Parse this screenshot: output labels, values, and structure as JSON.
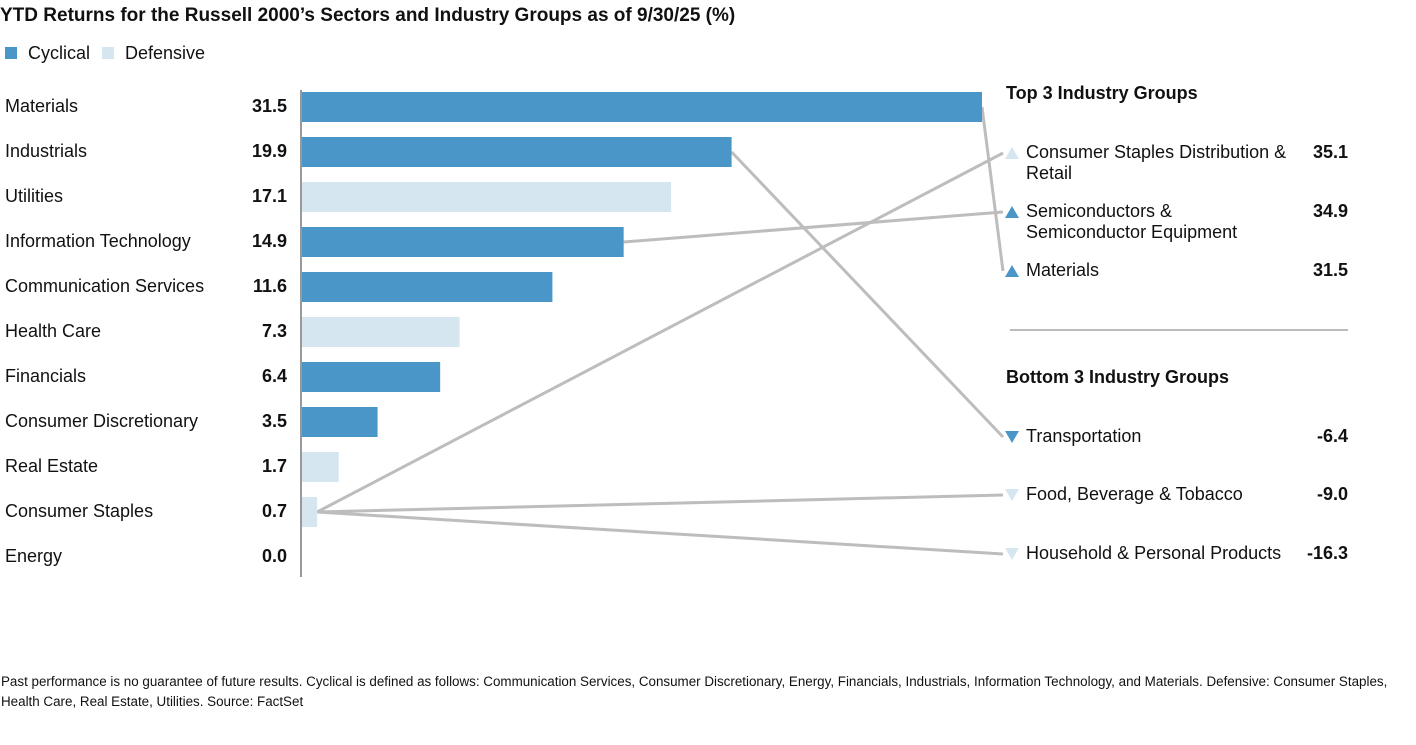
{
  "chart_data": {
    "type": "bar",
    "orientation": "horizontal",
    "title": "YTD Returns for the Russell 2000’s Sectors and Industry Groups as of 9/30/25 (%)",
    "categories": [
      "Materials",
      "Industrials",
      "Utilities",
      "Information Technology",
      "Communication Services",
      "Health Care",
      "Financials",
      "Consumer Discretionary",
      "Real Estate",
      "Consumer Staples",
      "Energy"
    ],
    "series": [
      {
        "name": "Cyclical",
        "color": "#4a96c9",
        "values": [
          31.5,
          19.9,
          null,
          14.9,
          11.6,
          null,
          6.4,
          3.5,
          null,
          null,
          0
        ],
        "value_labels": [
          "31.5",
          "19.9",
          null,
          "14.9",
          "11.6",
          null,
          "6.4",
          "3.5",
          null,
          null,
          "0.0"
        ]
      },
      {
        "name": "Defensive",
        "color": "#d6e6f1",
        "values": [
          null,
          null,
          17.1,
          null,
          null,
          7.3,
          null,
          null,
          1.7,
          0.7,
          null
        ],
        "value_labels": [
          null,
          null,
          "17.1",
          null,
          null,
          "7.3",
          null,
          null,
          "1.7",
          "0.7",
          null
        ]
      }
    ],
    "xlim": [
      0,
      31.5
    ]
  },
  "side_panel": {
    "top": {
      "title": "Top 3 Industry Groups",
      "items": [
        {
          "label": "Consumer Staples Distribution & Retail",
          "value": 35.1,
          "value_label": "35.1",
          "color": "#d6e6f1"
        },
        {
          "label": "Semiconductors & Semiconductor Equipment",
          "value": 34.9,
          "value_label": "34.9",
          "color": "#4a96c9"
        },
        {
          "label": "Materials",
          "value": 31.5,
          "value_label": "31.5",
          "color": "#4a96c9"
        }
      ]
    },
    "bottom": {
      "title": "Bottom 3 Industry Groups",
      "items": [
        {
          "label": "Transportation",
          "value": -6.4,
          "value_label": "-6.4",
          "color": "#4a96c9"
        },
        {
          "label": "Food, Beverage & Tobacco",
          "value": -9.0,
          "value_label": "-9.0",
          "color": "#d6e6f1"
        },
        {
          "label": "Household & Personal Products",
          "value": -16.3,
          "value_label": "-16.3",
          "color": "#d6e6f1"
        }
      ]
    }
  },
  "footnote": "Past performance is no guarantee of future results. Cyclical is defined as follows: Communication Services, Consumer Discretionary, Energy, Financials, Industrials, Information Technology, and Materials. Defensive: Consumer Staples, Health Care, Real Estate, Utilities. Source: FactSet"
}
